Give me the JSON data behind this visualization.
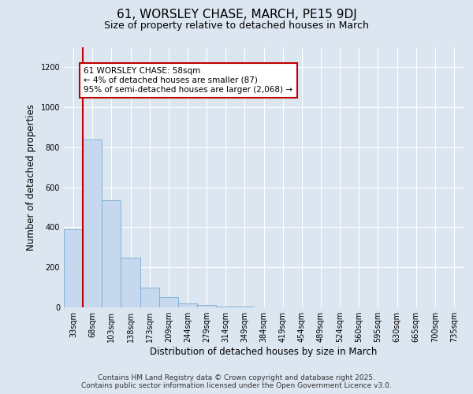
{
  "title_line1": "61, WORSLEY CHASE, MARCH, PE15 9DJ",
  "title_line2": "Size of property relative to detached houses in March",
  "xlabel": "Distribution of detached houses by size in March",
  "ylabel": "Number of detached properties",
  "categories": [
    "33sqm",
    "68sqm",
    "103sqm",
    "138sqm",
    "173sqm",
    "209sqm",
    "244sqm",
    "279sqm",
    "314sqm",
    "349sqm",
    "384sqm",
    "419sqm",
    "454sqm",
    "489sqm",
    "524sqm",
    "560sqm",
    "595sqm",
    "630sqm",
    "665sqm",
    "700sqm",
    "735sqm"
  ],
  "values": [
    390,
    840,
    535,
    247,
    100,
    52,
    18,
    10,
    5,
    2,
    1,
    0,
    0,
    0,
    0,
    0,
    0,
    0,
    0,
    0,
    0
  ],
  "bar_color": "#c5d8ed",
  "bar_edgecolor": "#7aadd4",
  "vline_color": "#c00000",
  "background_color": "#dce6f1",
  "annotation_text": "61 WORSLEY CHASE: 58sqm\n← 4% of detached houses are smaller (87)\n95% of semi-detached houses are larger (2,068) →",
  "annotation_box_edgecolor": "#c00000",
  "ylim": [
    0,
    1300
  ],
  "yticks": [
    0,
    200,
    400,
    600,
    800,
    1000,
    1200
  ],
  "footer_line1": "Contains HM Land Registry data © Crown copyright and database right 2025.",
  "footer_line2": "Contains public sector information licensed under the Open Government Licence v3.0.",
  "title_fontsize": 11,
  "subtitle_fontsize": 9,
  "axis_label_fontsize": 8.5,
  "tick_fontsize": 7,
  "annotation_fontsize": 7.5,
  "footer_fontsize": 6.5
}
